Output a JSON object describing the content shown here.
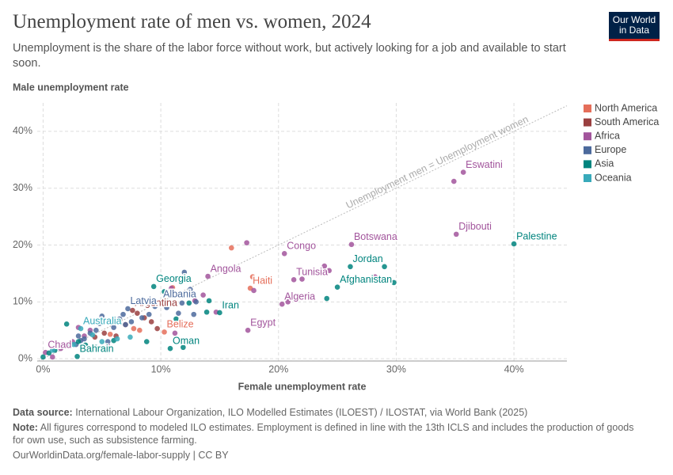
{
  "chart_data": {
    "type": "scatter",
    "title": "Unemployment rate of men vs. women, 2024",
    "subtitle": "Unemployment is the share of the labor force without work, but actively looking for a job and available to start soon.",
    "logo": [
      "Our World",
      "in Data"
    ],
    "xlabel": "Female unemployment rate",
    "ylabel": "Male unemployment rate",
    "reference_line_label": "Unemployment men = Unemployment women",
    "xlim": [
      -0.5,
      44.5
    ],
    "ylim": [
      -0.4,
      45
    ],
    "xticks": [
      {
        "value": 0,
        "label": "0%"
      },
      {
        "value": 10,
        "label": "10%"
      },
      {
        "value": 20,
        "label": "20%"
      },
      {
        "value": 30,
        "label": "30%"
      },
      {
        "value": 40,
        "label": "40%"
      }
    ],
    "yticks": [
      {
        "value": 0,
        "label": "0%"
      },
      {
        "value": 10,
        "label": "10%"
      },
      {
        "value": 20,
        "label": "20%"
      },
      {
        "value": 30,
        "label": "30%"
      },
      {
        "value": 40,
        "label": "40%"
      }
    ],
    "grid": true,
    "legend": "right",
    "series": [
      {
        "name": "North America",
        "color": "#e56e5a",
        "x": [
          16.0,
          17.6,
          10.3,
          5.7,
          7.7,
          8.2,
          17.8,
          4.5,
          11.0
        ],
        "values": [
          19.5,
          12.4,
          4.7,
          4.3,
          5.3,
          5.0,
          14.4,
          6.5,
          12.5
        ],
        "labels": [
          null,
          "Haiti",
          "Belize",
          null,
          null,
          null,
          null,
          null,
          null
        ]
      },
      {
        "name": "South America",
        "color": "#9a3f3f",
        "x": [
          7.6,
          9.7,
          8.6,
          6.2,
          9.2,
          5.2,
          4.4,
          8.0,
          7.0,
          6.5
        ],
        "values": [
          8.5,
          5.3,
          7.2,
          4.0,
          6.5,
          4.5,
          3.8,
          8.0,
          6.0,
          6.8
        ],
        "labels": [
          "Argentina",
          null,
          null,
          null,
          null,
          null,
          null,
          null,
          null,
          null
        ]
      },
      {
        "name": "Africa",
        "color": "#a2559c",
        "x": [
          35.7,
          34.9,
          35.1,
          26.2,
          20.5,
          14.0,
          21.3,
          20.3,
          17.4,
          0.2,
          17.3,
          23.9,
          24.3,
          28.2,
          17.9,
          12.9,
          13.6,
          10.9,
          11.2,
          0.8,
          2.5,
          3.5,
          2.0,
          1.5,
          4.0,
          3.0,
          5.5,
          14.7,
          22.0,
          20.8
        ],
        "values": [
          32.8,
          31.2,
          21.9,
          20.1,
          18.5,
          14.5,
          13.9,
          9.6,
          5.0,
          1.1,
          20.4,
          16.3,
          15.5,
          14.4,
          12.0,
          10.2,
          11.2,
          12.4,
          4.5,
          0.3,
          3.0,
          4.0,
          2.5,
          1.8,
          5.0,
          5.5,
          2.2,
          8.2,
          14.0,
          10.0
        ],
        "labels": [
          "Eswatini",
          null,
          "Djibouti",
          "Botswana",
          "Congo",
          "Angola",
          "Tunisia",
          "Algeria",
          "Egypt",
          "Chad",
          null,
          null,
          null,
          null,
          null,
          null,
          null,
          null,
          null,
          null,
          null,
          null,
          null,
          null,
          null,
          null,
          null,
          null,
          null,
          null
        ]
      },
      {
        "name": "Europe",
        "color": "#4c6a9c",
        "x": [
          10.0,
          7.2,
          12.0,
          10.5,
          11.5,
          12.8,
          13.0,
          6.5,
          5.0,
          4.5,
          7.5,
          8.4,
          9.0,
          6.0,
          3.5,
          4.0,
          5.5,
          2.8,
          3.2,
          12.5,
          9.5,
          7.0,
          4.8,
          3.0,
          6.8,
          11.8
        ],
        "values": [
          10.0,
          8.8,
          15.2,
          9.0,
          8.0,
          7.8,
          10.0,
          7.0,
          7.5,
          5.0,
          6.5,
          7.2,
          7.8,
          5.5,
          3.5,
          4.5,
          3.0,
          2.5,
          3.2,
          12.2,
          9.2,
          6.0,
          6.2,
          4.0,
          7.8,
          9.8
        ],
        "labels": [
          "Albania",
          "Latvia",
          null,
          null,
          null,
          null,
          null,
          null,
          null,
          null,
          null,
          null,
          null,
          null,
          null,
          null,
          null,
          null,
          null,
          null,
          null,
          null,
          null,
          null,
          null,
          null
        ]
      },
      {
        "name": "Asia",
        "color": "#00847e",
        "x": [
          40.0,
          26.1,
          29.0,
          25.0,
          29.8,
          24.1,
          15.0,
          14.1,
          10.8,
          11.9,
          9.4,
          2.9,
          2.0,
          0.0,
          0.5,
          1.0,
          3.0,
          4.5,
          10.3,
          12.4,
          8.8,
          3.6,
          2.2,
          6.0,
          11.3,
          13.9
        ],
        "values": [
          20.2,
          16.2,
          16.2,
          12.6,
          13.4,
          10.6,
          8.1,
          10.2,
          1.8,
          2.0,
          12.7,
          0.4,
          6.1,
          0.3,
          1.0,
          1.5,
          3.0,
          2.0,
          11.8,
          9.8,
          3.0,
          2.4,
          2.2,
          3.2,
          7.0,
          8.2
        ],
        "labels": [
          "Palestine",
          "Jordan",
          null,
          "Afghanistan",
          null,
          null,
          "Iran",
          null,
          "Oman",
          null,
          "Georgia",
          "Bahrain",
          null,
          null,
          null,
          null,
          null,
          null,
          null,
          null,
          null,
          null,
          null,
          null,
          null,
          null
        ]
      },
      {
        "name": "Oceania",
        "color": "#38aaba",
        "x": [
          3.2,
          6.3,
          0.8,
          2.6,
          5.0,
          7.4,
          4.2
        ],
        "values": [
          5.3,
          3.5,
          1.5,
          2.5,
          3.0,
          3.8,
          4.2
        ],
        "labels": [
          "Australia",
          null,
          null,
          null,
          null,
          null,
          null
        ]
      }
    ],
    "footer": {
      "source_label": "Data source:",
      "source": "International Labour Organization, ILO Modelled Estimates (ILOEST) / ILOSTAT, via World Bank (2025)",
      "note_label": "Note:",
      "note": "All figures correspond to modeled ILO estimates. Employment is defined in line with the 13th ICLS and includes the production of goods for own use, such as subsistence farming.",
      "url": "OurWorldinData.org/female-labor-supply | CC BY"
    }
  }
}
